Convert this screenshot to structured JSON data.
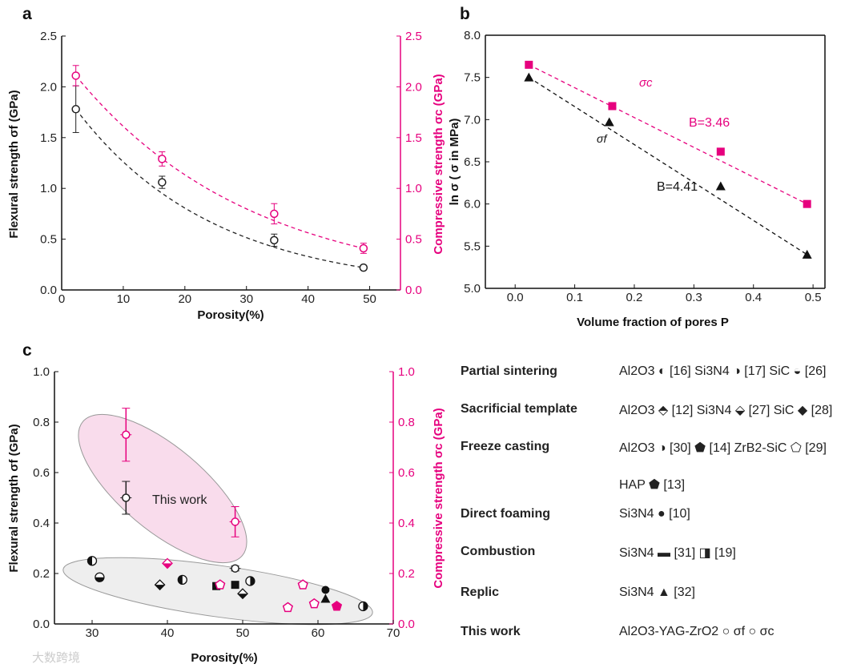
{
  "colors": {
    "flexural": "#222222",
    "compressive": "#e6007e",
    "pink_ellipse": "#f9dcec",
    "gray_ellipse": "#eeeeee"
  },
  "chart_data": [
    {
      "panel": "a",
      "type": "scatter",
      "xlabel": "Porosity(%)",
      "ylabel": "Flexural strength σf (GPa)",
      "ylabel_right": "Compressive strength σc (GPa)",
      "xlim": [
        0,
        55
      ],
      "ylim": [
        0,
        2.5
      ],
      "ylim_right": [
        0,
        2.5
      ],
      "xticks": [
        "0",
        "10",
        "20",
        "30",
        "40",
        "50"
      ],
      "yticks": [
        "0.0",
        "0.5",
        "1.0",
        "1.5",
        "2.0",
        "2.5"
      ],
      "series": [
        {
          "name": "σf",
          "color": "#222222",
          "fit": "dashed",
          "points": [
            [
              2.3,
              1.78,
              0.23
            ],
            [
              16.3,
              1.06,
              0.06
            ],
            [
              34.5,
              0.49,
              0.06
            ],
            [
              49,
              0.22,
              0.02
            ]
          ]
        },
        {
          "name": "σc",
          "color": "#e6007e",
          "fit": "dashed",
          "points": [
            [
              2.3,
              2.11,
              0.1
            ],
            [
              16.3,
              1.29,
              0.07
            ],
            [
              34.5,
              0.75,
              0.1
            ],
            [
              49,
              0.41,
              0.05
            ]
          ]
        }
      ]
    },
    {
      "panel": "b",
      "type": "line",
      "xlabel": "Volume fraction of pores  P",
      "ylabel": "ln σ  ( σ in MPa)",
      "xlim": [
        -0.05,
        0.52
      ],
      "ylim": [
        5.0,
        8.0
      ],
      "xticks": [
        "0.0",
        "0.1",
        "0.2",
        "0.3",
        "0.4",
        "0.5"
      ],
      "yticks": [
        "5.0",
        "5.5",
        "6.0",
        "6.5",
        "7.0",
        "7.5",
        "8.0"
      ],
      "series": [
        {
          "name": "σc",
          "color": "#e6007e",
          "marker": "square",
          "label": "B=3.46",
          "points": [
            [
              0.023,
              7.65
            ],
            [
              0.163,
              7.16
            ],
            [
              0.345,
              6.62
            ],
            [
              0.49,
              6.0
            ]
          ]
        },
        {
          "name": "σf",
          "color": "#111111",
          "marker": "triangle",
          "label": "B=4.41",
          "points": [
            [
              0.023,
              7.5
            ],
            [
              0.158,
              6.97
            ],
            [
              0.345,
              6.21
            ],
            [
              0.49,
              5.4
            ]
          ]
        }
      ]
    },
    {
      "panel": "c",
      "type": "scatter",
      "xlabel": "Porosity(%)",
      "ylabel": "Flexural strength σf (GPa)",
      "ylabel_right": "Compressive strength σc (GPa)",
      "xlim": [
        25,
        70
      ],
      "ylim": [
        0,
        1.0
      ],
      "xticks": [
        "30",
        "40",
        "50",
        "60",
        "70"
      ],
      "yticks": [
        "0.0",
        "0.2",
        "0.4",
        "0.6",
        "0.8",
        "1.0"
      ],
      "annotation": "This work",
      "this_work": [
        {
          "name": "σf",
          "color": "#222222",
          "points": [
            [
              34.5,
              0.5,
              0.065
            ],
            [
              49,
              0.22,
              0.01
            ]
          ]
        },
        {
          "name": "σc",
          "color": "#e6007e",
          "points": [
            [
              34.5,
              0.75,
              0.105
            ],
            [
              49,
              0.405,
              0.06
            ]
          ]
        }
      ],
      "literature": [
        {
          "marker": "half-circle-left",
          "color": "#111111",
          "points": [
            [
              30,
              0.25
            ],
            [
              42,
              0.175
            ]
          ]
        },
        {
          "marker": "half-circle-right",
          "color": "#111111",
          "points": [
            [
              51,
              0.17
            ],
            [
              66,
              0.07
            ]
          ]
        },
        {
          "marker": "half-circle-bottom",
          "color": "#111111",
          "points": [
            [
              31,
              0.185
            ]
          ]
        },
        {
          "marker": "diamond",
          "color": "#111111",
          "points": [
            [
              39,
              0.155
            ],
            [
              50,
              0.12
            ]
          ]
        },
        {
          "marker": "diamond",
          "color": "#e6007e",
          "points": [
            [
              40,
              0.24
            ]
          ]
        },
        {
          "marker": "square",
          "color": "#111111",
          "points": [
            [
              46.5,
              0.15
            ],
            [
              49,
              0.155
            ]
          ]
        },
        {
          "marker": "pentagon-half",
          "color": "#e6007e",
          "points": [
            [
              47,
              0.155
            ],
            [
              56,
              0.065
            ],
            [
              58,
              0.155
            ],
            [
              59.5,
              0.08
            ]
          ]
        },
        {
          "marker": "pentagon",
          "color": "#e6007e",
          "points": [
            [
              62.5,
              0.07
            ]
          ]
        },
        {
          "marker": "circle",
          "color": "#111111",
          "points": [
            [
              61,
              0.135
            ]
          ]
        },
        {
          "marker": "triangle",
          "color": "#111111",
          "points": [
            [
              61,
              0.1
            ]
          ]
        }
      ]
    }
  ],
  "labels": {
    "panel_a": "a",
    "panel_b": "b",
    "panel_c": "c",
    "sigma_c": "σc",
    "sigma_f": "σf",
    "b_c": "B=3.46",
    "b_f": "B=4.41",
    "a_xlabel": "Porosity(%)",
    "a_ylabel": "Flexural strength  σf (GPa)",
    "a_ylabel_r": "Compressive strength  σc (GPa)",
    "b_xlabel": "Volume fraction of pores  P",
    "b_ylabel": "ln σ  ( σ in MPa)",
    "c_xlabel": "Porosity(%)",
    "c_ylabel": "Flexural strength  σf (GPa)",
    "c_ylabel_r": "Compressive strength  σc (GPa)",
    "this_work": "This work",
    "watermark": "大数跨境"
  },
  "legend": [
    {
      "method": "Partial sintering",
      "entries": "Al2O3 ◐ [16] Si3N4 ◑ [17] SiC ◒ [26]"
    },
    {
      "method": "Sacrificial template",
      "entries": "Al2O3 ⬘ [12] Si3N4 ⬙ [27] SiC ◆ [28]"
    },
    {
      "method": "Freeze casting",
      "entries": "Al2O3 ◑ [30] ⬟ [14] ZrB2-SiC ⬠ [29]"
    },
    {
      "method": "",
      "entries": "HAP   ⬟ [13]"
    },
    {
      "method": "Direct foaming",
      "entries": "Si3N4 ● [10]"
    },
    {
      "method": "Combustion",
      "entries": "Si3N4 ▬ [31] ◨ [19]"
    },
    {
      "method": "Replic",
      "entries": "Si3N4 ▲ [32]"
    },
    {
      "method": "This work",
      "entries": "Al2O3-YAG-ZrO2   ○ σf  ○ σc"
    }
  ]
}
